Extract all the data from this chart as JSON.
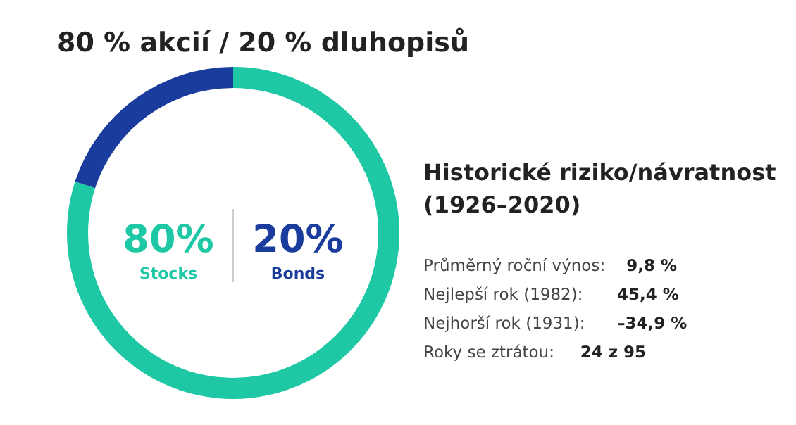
{
  "chart_data": {
    "type": "donut",
    "title": "80 % akcií / 20 % dluhopisů",
    "categories": [
      "Stocks",
      "Bonds"
    ],
    "values": [
      80,
      20
    ],
    "colors": [
      "#1ec8a5",
      "#1a3c9c"
    ],
    "value_labels": [
      "80%",
      "20%"
    ],
    "annotations": [
      "Historické riziko/návratnost (1926–2020)",
      "Průměrný roční výnos: 9,8 %",
      "Nejlepší rok (1982): 45,4 %",
      "Nejhorší rok (1931): –34,9 %",
      "Roky se ztrátou: 24 z 95"
    ]
  }
}
